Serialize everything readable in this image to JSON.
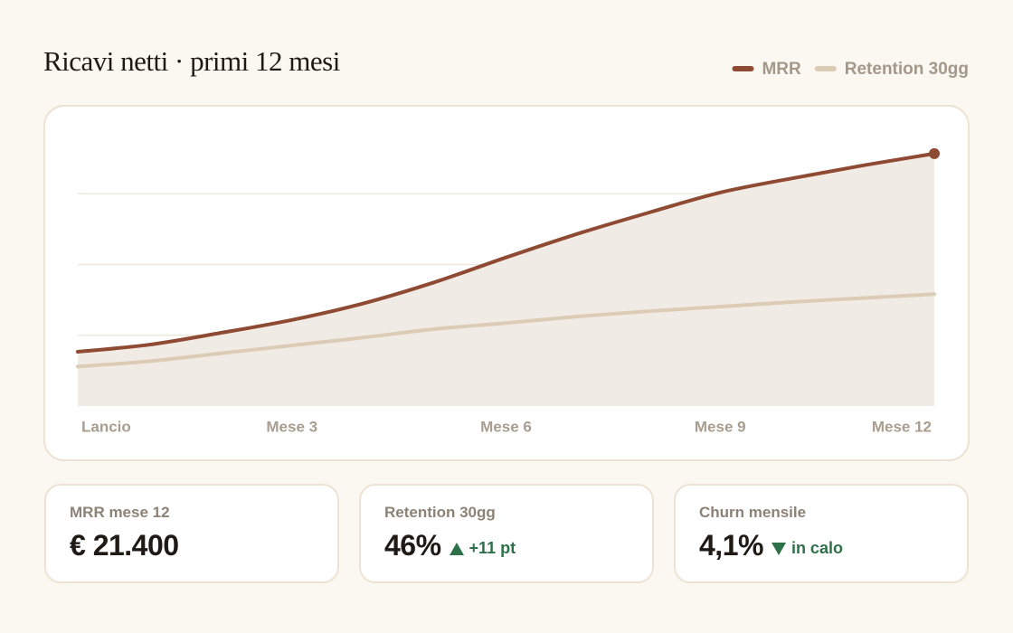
{
  "chart_data": {
    "type": "line",
    "title": "Ricavi netti · primi 12 mesi",
    "x": [
      0,
      1,
      2,
      3,
      4,
      5,
      6,
      7,
      8,
      9,
      10,
      11,
      12
    ],
    "xlim": [
      0,
      12
    ],
    "xticks": [
      {
        "value": 0,
        "label": "Lancio"
      },
      {
        "value": 3,
        "label": "Mese 3"
      },
      {
        "value": 6,
        "label": "Mese 6"
      },
      {
        "value": 9,
        "label": "Mese 9"
      },
      {
        "value": 12,
        "label": "Mese 12"
      }
    ],
    "ylim": [
      0,
      24000
    ],
    "yticks": [
      6000,
      12000,
      18000
    ],
    "grid": true,
    "y2lim": [
      29,
      72
    ],
    "legend": "top-right",
    "series": [
      {
        "name": "MRR",
        "color": "#8f4a33",
        "area": true,
        "values": [
          4600,
          5200,
          6200,
          7300,
          8700,
          10500,
          12600,
          14600,
          16400,
          18100,
          19300,
          20400,
          21400
        ]
      },
      {
        "name": "Retention 30gg",
        "color": "#dccbb5",
        "axis": "y2",
        "values": [
          35.0,
          35.8,
          37.0,
          38.2,
          39.4,
          40.7,
          41.6,
          42.6,
          43.4,
          44.1,
          44.8,
          45.4,
          46.0
        ]
      }
    ]
  },
  "kpis": [
    {
      "label": "MRR mese 12",
      "value": "€ 21.400"
    },
    {
      "label": "Retention 30gg",
      "value": "46%",
      "delta": "+11 pt",
      "direction": "up"
    },
    {
      "label": "Churn mensile",
      "value": "4,1%",
      "delta": "in calo",
      "direction": "down"
    }
  ]
}
